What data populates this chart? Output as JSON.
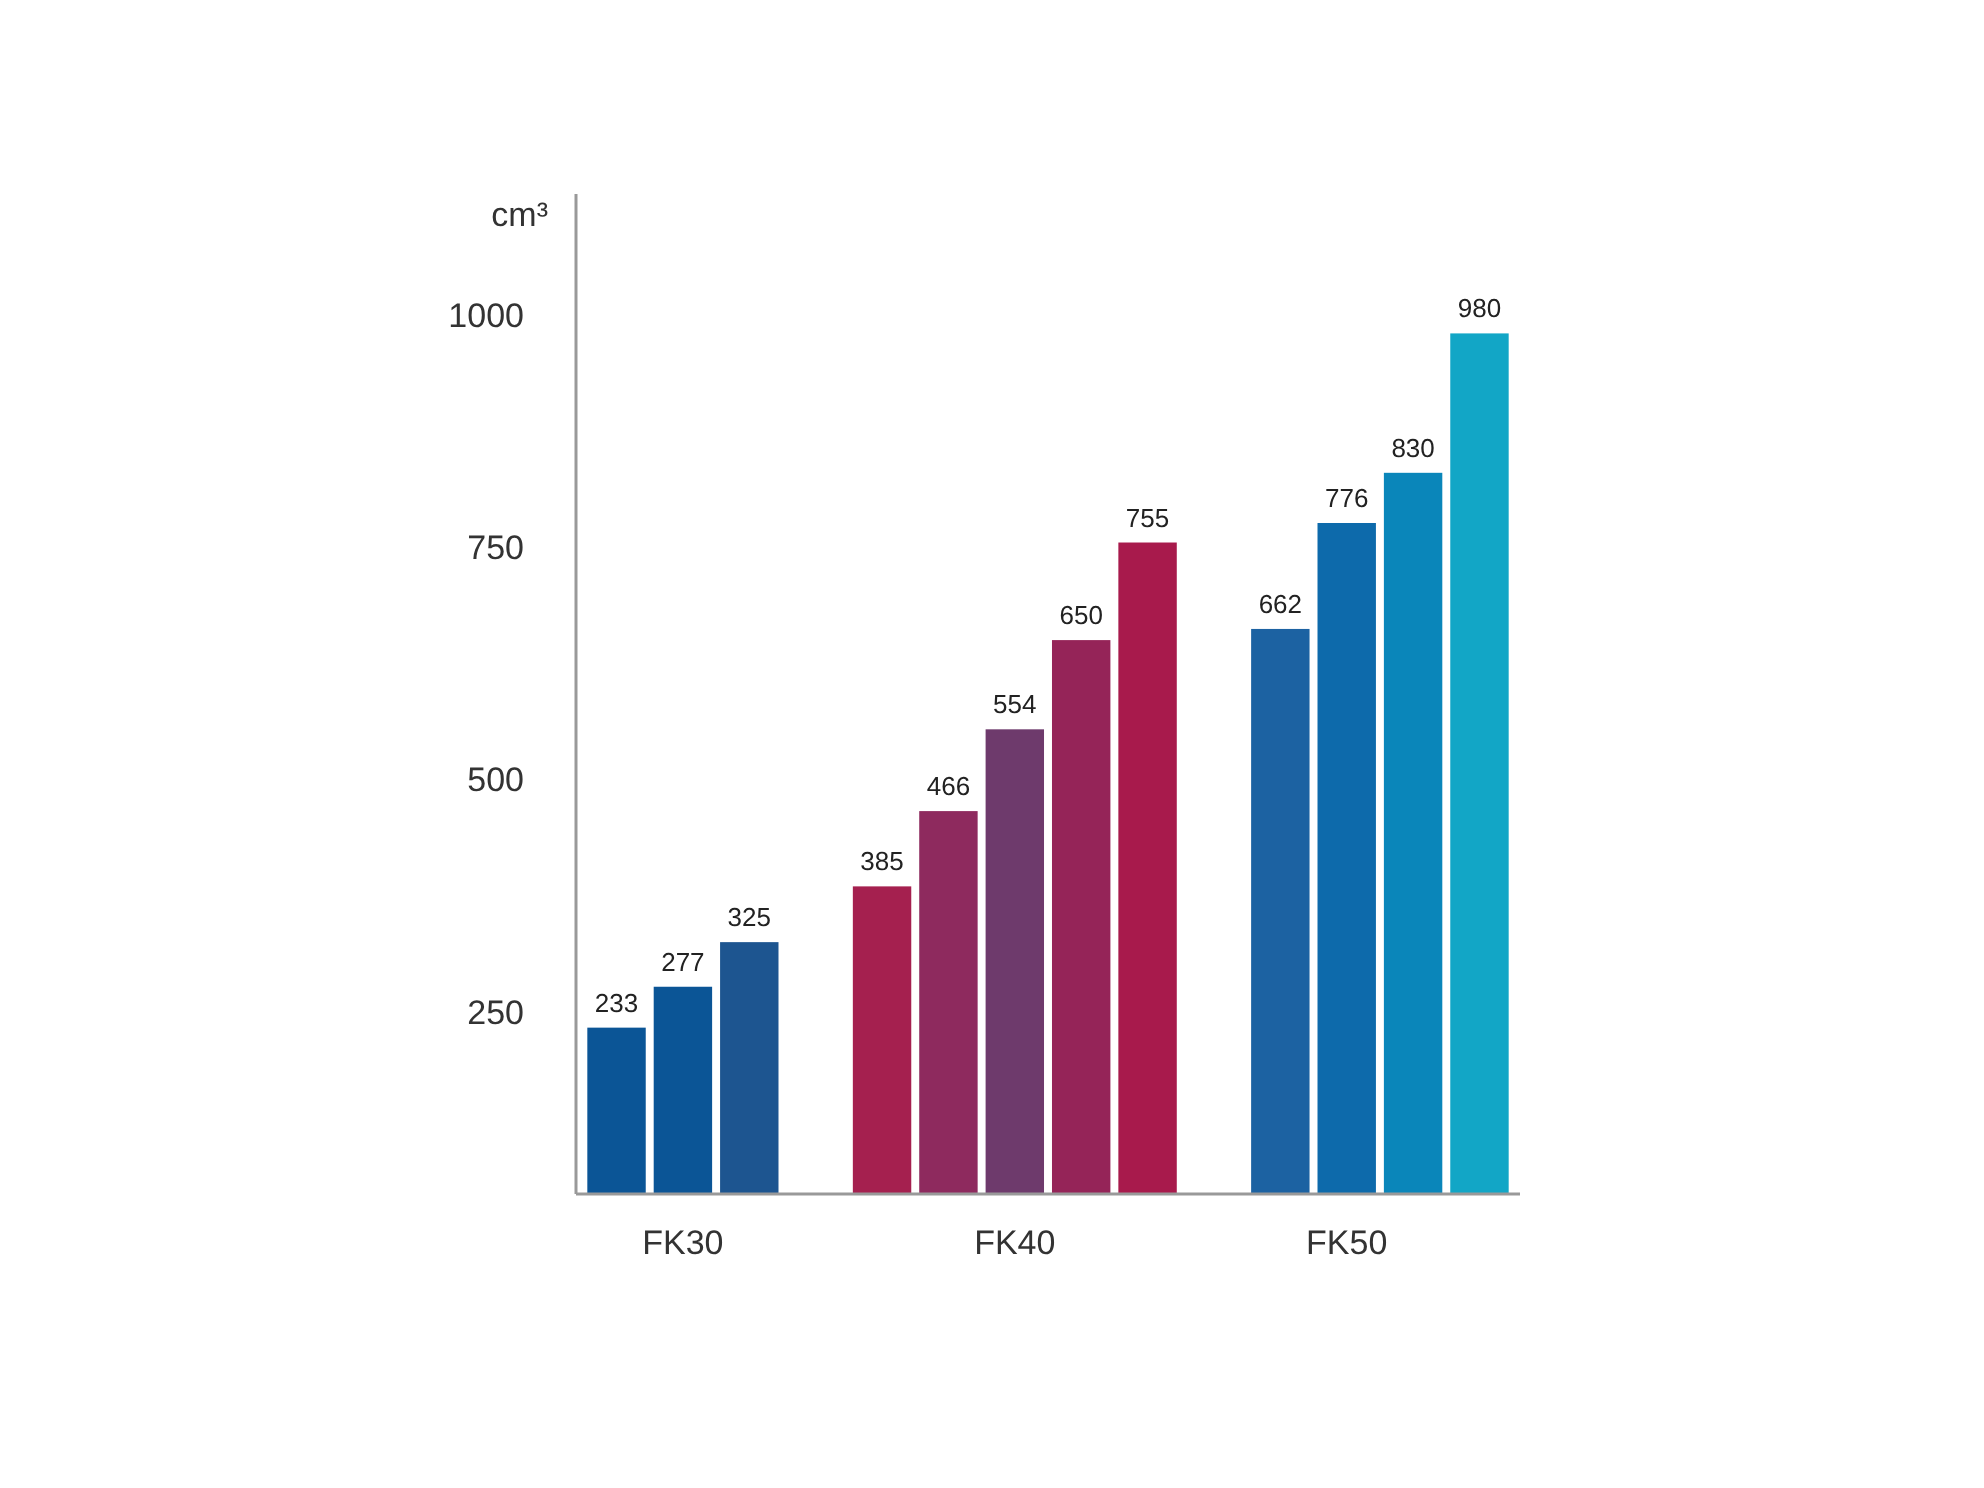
{
  "chart_data": {
    "type": "bar",
    "ylabel": "cm³",
    "categories": [
      null,
      "FK30",
      null,
      null,
      null,
      null,
      "FK40",
      null,
      null,
      null,
      null,
      "FK50",
      null,
      null
    ],
    "values": [
      233,
      277,
      325,
      null,
      385,
      466,
      554,
      650,
      755,
      null,
      662,
      776,
      830,
      980
    ],
    "colors": [
      "#0b5596",
      "#0b5596",
      "#1d5590",
      null,
      "#a5204f",
      "#8e2a5e",
      "#6e3a6c",
      "#952458",
      "#a81a4c",
      null,
      "#1c62a2",
      "#0d6aab",
      "#0a86ba",
      "#12a6c6"
    ],
    "ylim": [
      54,
      1130
    ],
    "yticks": [
      250,
      500,
      750,
      1000
    ],
    "grid": false,
    "data_labels": true
  }
}
